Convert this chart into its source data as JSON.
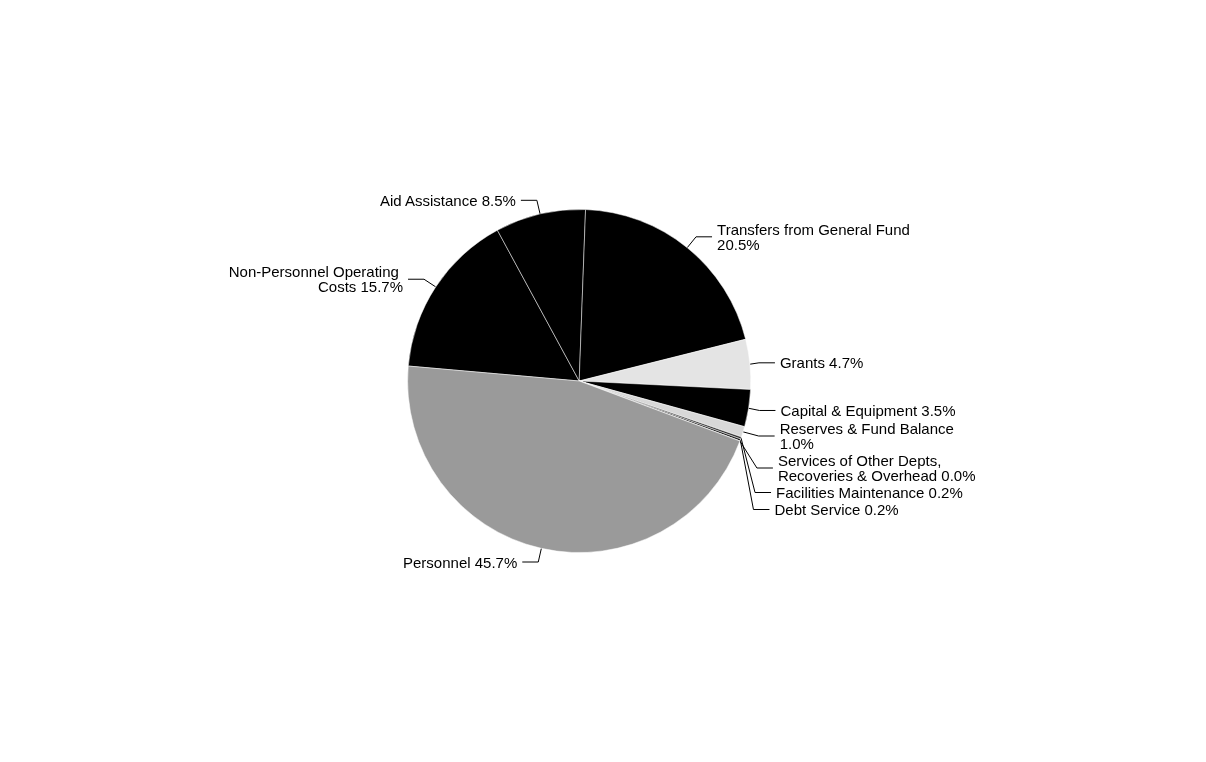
{
  "chart_data": {
    "type": "pie",
    "categories": [
      "Non-Personnel Operating Costs",
      "Aid Assistance",
      "Transfers from General Fund",
      "Grants",
      "Capital & Equipment",
      "Reserves & Fund Balance",
      "Facilities Maintenance",
      "Debt Service",
      "Services of Other Depts, Recoveries & Overhead",
      "Personnel"
    ],
    "values": [
      15.7,
      8.5,
      20.5,
      4.7,
      3.5,
      1.0,
      0.2,
      0.2,
      0.0,
      45.7
    ],
    "value_labels": [
      "15.7%",
      "8.5%",
      "20.5%",
      "4.7%",
      "3.5%",
      "1.0%",
      "0.2%",
      "0.2%",
      "0.0%",
      "45.7%"
    ],
    "colors": [
      "#000000",
      "#000000",
      "#000000",
      "#e4e4e4",
      "#000000",
      "#d8d8d8",
      "#303030",
      "#202020",
      "#404040",
      "#9a9a9a"
    ]
  }
}
